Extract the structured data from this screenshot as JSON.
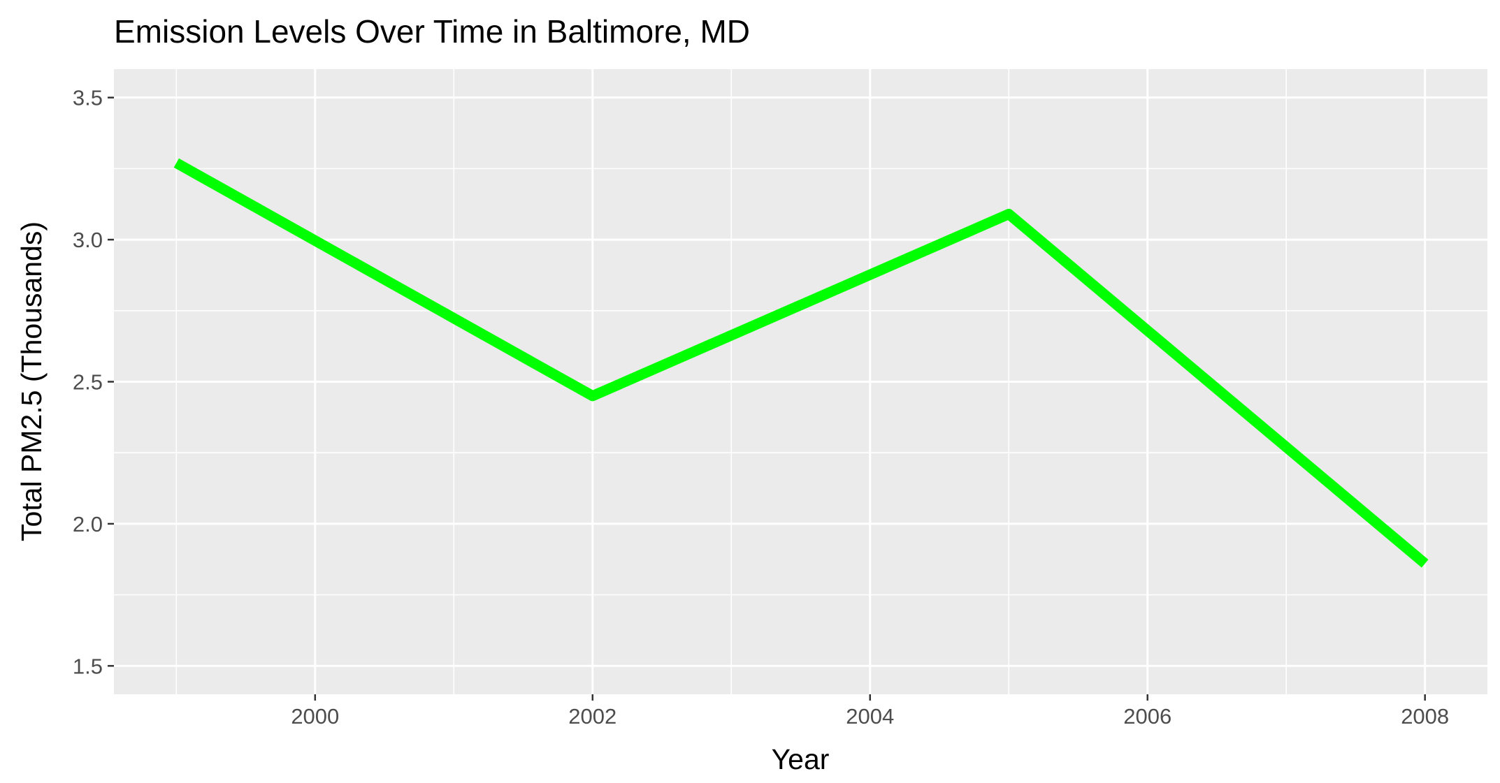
{
  "chart_data": {
    "type": "line",
    "title": "Emission Levels Over Time in Baltimore, MD",
    "xlabel": "Year",
    "ylabel": "Total PM2.5 (Thousands)",
    "x": [
      1999,
      2002,
      2005,
      2008
    ],
    "series": [
      {
        "values": [
          3.27,
          2.45,
          3.09,
          1.86
        ]
      }
    ],
    "xlim": [
      1998.55,
      2008.45
    ],
    "ylim": [
      1.4,
      3.6
    ],
    "xticks": [
      2000,
      2002,
      2004,
      2006,
      2008
    ],
    "xtick_labels": [
      "2000",
      "2002",
      "2004",
      "2006",
      "2008"
    ],
    "yticks": [
      1.5,
      2.0,
      2.5,
      3.0,
      3.5
    ],
    "ytick_labels": [
      "1.5",
      "2.0",
      "2.5",
      "3.0",
      "3.5"
    ],
    "grid": true,
    "legend": "none",
    "colors": {
      "line": "#00ff00",
      "panel": "#ebebeb",
      "grid": "#ffffff",
      "tick_text": "#4d4d4d",
      "text": "#000000"
    }
  }
}
